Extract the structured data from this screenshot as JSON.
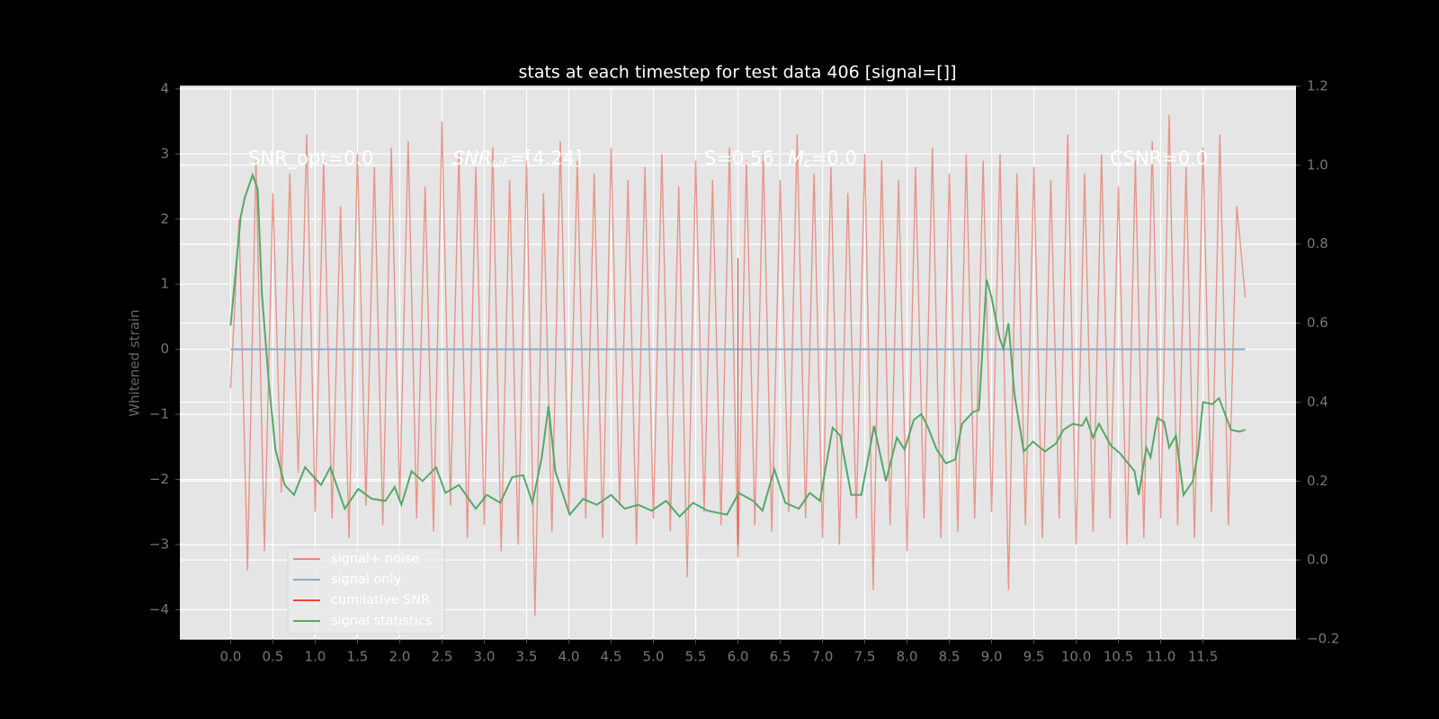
{
  "chart_data": {
    "type": "line",
    "title": "stats at each timestep for test data 406 [signal=[]]",
    "ylabel": "Whitened strain",
    "annotations": [
      "SNR_opt=0.0",
      {
        "base": "SNR",
        "sub": "ωF",
        "rest": "=[4.24]"
      },
      "S=0.56",
      {
        "base": "M",
        "sub": "c",
        "rest": "=0.0"
      },
      "CSNR=0.0"
    ],
    "xlim": [
      -0.6,
      12.6
    ],
    "ylim": [
      -4.45,
      4.04
    ],
    "y2lim": [
      -0.2,
      1.2
    ],
    "xticks": [
      {
        "value": 0,
        "label": "0.0"
      },
      0.5,
      {
        "value": 1,
        "label": "1.0"
      },
      1.5,
      {
        "value": 2,
        "label": "2.0"
      },
      2.5,
      {
        "value": 3,
        "label": "3.0"
      },
      3.5,
      {
        "value": 4,
        "label": "4.0"
      },
      4.5,
      {
        "value": 5,
        "label": "5.0"
      },
      5.5,
      {
        "value": 6,
        "label": "6.0"
      },
      6.5,
      {
        "value": 7,
        "label": "7.0"
      },
      7.5,
      {
        "value": 8,
        "label": "8.0"
      },
      8.5,
      {
        "value": 9,
        "label": "9.0"
      },
      9.5,
      {
        "value": 10,
        "label": "10.0"
      },
      10.5,
      {
        "value": 11,
        "label": "11.0"
      },
      11.5
    ],
    "yticks": [
      {
        "value": -4,
        "label": "−4"
      },
      {
        "value": -3,
        "label": "−3"
      },
      {
        "value": -2,
        "label": "−2"
      },
      {
        "value": -1,
        "label": "−1"
      },
      0,
      1,
      2,
      3,
      4
    ],
    "y2ticks": [
      {
        "value": -0.2,
        "label": "−0.2"
      },
      {
        "value": 0,
        "label": "0.0"
      },
      0.2,
      0.4,
      0.6,
      0.8,
      {
        "value": 1,
        "label": "1.0"
      },
      1.2
    ],
    "grid": true,
    "legend": "lower left",
    "series": [
      {
        "name": "signal+ noise",
        "color": "#e8877a",
        "x": [
          0,
          0.1,
          0.2,
          0.3,
          0.4,
          0.5,
          0.6,
          0.7,
          0.8,
          0.9,
          1,
          1.1,
          1.2,
          1.3,
          1.4,
          1.5,
          1.6,
          1.7,
          1.8,
          1.9,
          2,
          2.1,
          2.2,
          2.3,
          2.4,
          2.5,
          2.6,
          2.7,
          2.8,
          2.9,
          3,
          3.1,
          3.2,
          3.3,
          3.4,
          3.5,
          3.6,
          3.7,
          3.8,
          3.9,
          4,
          4.1,
          4.2,
          4.3,
          4.4,
          4.5,
          4.6,
          4.7,
          4.8,
          4.9,
          5,
          5.1,
          5.2,
          5.3,
          5.4,
          5.5,
          5.6,
          5.7,
          5.8,
          5.9,
          6,
          6.1,
          6.2,
          6.3,
          6.4,
          6.5,
          6.6,
          6.7,
          6.8,
          6.9,
          7,
          7.1,
          7.2,
          7.3,
          7.4,
          7.5,
          7.6,
          7.7,
          7.8,
          7.9,
          8,
          8.1,
          8.2,
          8.3,
          8.4,
          8.5,
          8.6,
          8.7,
          8.8,
          8.9,
          9,
          9.1,
          9.2,
          9.3,
          9.4,
          9.5,
          9.6,
          9.7,
          9.8,
          9.9,
          10,
          10.1,
          10.2,
          10.3,
          10.4,
          10.5,
          10.6,
          10.7,
          10.8,
          10.9,
          11,
          11.1,
          11.2,
          11.3,
          11.4,
          11.5,
          11.6,
          11.7,
          11.8,
          11.9,
          12
        ],
        "values": [
          -0.6,
          2.0,
          -3.4,
          2.9,
          -3.1,
          2.4,
          -2.2,
          2.7,
          -1.9,
          3.3,
          -2.5,
          2.9,
          -2.6,
          2.2,
          -2.9,
          3.0,
          -2.4,
          2.8,
          -2.7,
          3.1,
          -2.3,
          3.2,
          -2.6,
          2.5,
          -2.8,
          3.5,
          -2.4,
          3.0,
          -2.9,
          2.8,
          -2.7,
          3.1,
          -3.1,
          2.6,
          -3.0,
          2.9,
          -4.1,
          2.4,
          -2.8,
          3.2,
          -2.5,
          2.9,
          -2.6,
          2.7,
          -2.9,
          3.1,
          -2.4,
          2.6,
          -3.0,
          2.8,
          -2.6,
          3.0,
          -2.8,
          2.5,
          -3.5,
          2.9,
          -2.5,
          2.6,
          -2.7,
          3.1,
          -3.2,
          2.9,
          -2.7,
          3.0,
          -2.8,
          2.6,
          -2.5,
          3.3,
          -2.6,
          2.7,
          -2.9,
          2.8,
          -3.0,
          2.4,
          -2.6,
          3.0,
          -3.7,
          2.9,
          -2.7,
          2.6,
          -3.1,
          2.8,
          -2.6,
          3.1,
          -2.9,
          2.7,
          -2.8,
          3.0,
          -2.6,
          2.9,
          -2.5,
          3.0,
          -3.7,
          2.7,
          -2.7,
          2.8,
          -2.9,
          2.6,
          -2.6,
          3.3,
          -3.0,
          2.7,
          -2.8,
          3.0,
          -2.6,
          2.5,
          -3.0,
          2.9,
          -2.9,
          3.2,
          -2.6,
          3.6,
          -2.7,
          2.8,
          -2.9,
          3.1,
          -2.5,
          3.3,
          -2.7,
          2.2,
          0.8
        ]
      },
      {
        "name": "signal only",
        "color": "#8eaac9",
        "x": [
          0,
          12
        ],
        "values": [
          0,
          0
        ]
      },
      {
        "name": "cumilative SNR",
        "color": "#e24a33",
        "x": [
          6,
          6
        ],
        "values": [
          1.4,
          -3.0
        ]
      },
      {
        "name": "signal statistics",
        "color": "#55a868",
        "axis": "y2",
        "x": [
          0,
          0.12,
          0.17,
          0.26,
          0.32,
          0.37,
          0.45,
          0.53,
          0.64,
          0.75,
          0.88,
          1.07,
          1.18,
          1.35,
          1.51,
          1.67,
          1.83,
          1.94,
          2.02,
          2.14,
          2.27,
          2.43,
          2.54,
          2.7,
          2.9,
          3.03,
          3.19,
          3.33,
          3.46,
          3.57,
          3.68,
          3.76,
          3.84,
          4.01,
          4.17,
          4.33,
          4.5,
          4.66,
          4.82,
          4.98,
          5.15,
          5.31,
          5.47,
          5.64,
          5.87,
          6.01,
          6.18,
          6.29,
          6.43,
          6.56,
          6.72,
          6.85,
          6.97,
          7.12,
          7.21,
          7.34,
          7.46,
          7.61,
          7.75,
          7.88,
          7.97,
          8.08,
          8.17,
          8.24,
          8.35,
          8.46,
          8.57,
          8.65,
          8.78,
          8.85,
          8.94,
          9.0,
          9.09,
          9.14,
          9.2,
          9.27,
          9.38,
          9.49,
          9.63,
          9.76,
          9.85,
          9.96,
          10.07,
          10.12,
          10.2,
          10.27,
          10.41,
          10.52,
          10.69,
          10.74,
          10.83,
          10.88,
          10.96,
          11.04,
          11.1,
          11.18,
          11.27,
          11.38,
          11.44,
          11.5,
          11.61,
          11.69,
          11.83,
          11.93,
          12.0
        ],
        "values": [
          0.594,
          0.87,
          0.92,
          0.975,
          0.94,
          0.675,
          0.455,
          0.28,
          0.19,
          0.165,
          0.235,
          0.19,
          0.235,
          0.13,
          0.18,
          0.155,
          0.15,
          0.185,
          0.14,
          0.225,
          0.2,
          0.235,
          0.17,
          0.19,
          0.13,
          0.165,
          0.145,
          0.21,
          0.215,
          0.145,
          0.26,
          0.39,
          0.225,
          0.115,
          0.155,
          0.14,
          0.165,
          0.13,
          0.14,
          0.125,
          0.15,
          0.11,
          0.145,
          0.125,
          0.115,
          0.17,
          0.15,
          0.125,
          0.23,
          0.145,
          0.13,
          0.17,
          0.15,
          0.335,
          0.315,
          0.165,
          0.165,
          0.34,
          0.2,
          0.31,
          0.28,
          0.355,
          0.37,
          0.34,
          0.28,
          0.245,
          0.255,
          0.345,
          0.375,
          0.38,
          0.71,
          0.665,
          0.565,
          0.535,
          0.6,
          0.42,
          0.275,
          0.3,
          0.275,
          0.295,
          0.33,
          0.345,
          0.34,
          0.36,
          0.31,
          0.345,
          0.29,
          0.27,
          0.225,
          0.165,
          0.285,
          0.26,
          0.36,
          0.35,
          0.285,
          0.315,
          0.165,
          0.2,
          0.27,
          0.4,
          0.395,
          0.41,
          0.33,
          0.325,
          0.33
        ]
      }
    ]
  }
}
